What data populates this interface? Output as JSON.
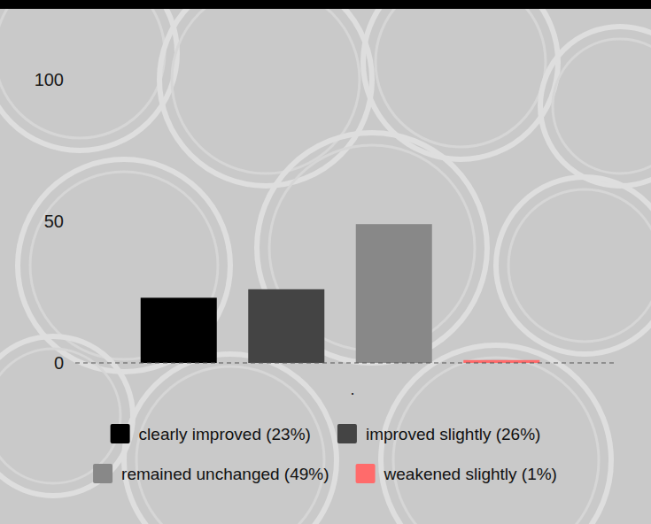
{
  "chart_data": {
    "type": "bar",
    "categories": [
      "."
    ],
    "series": [
      {
        "name": "clearly improved (23%)",
        "color": "#000000",
        "values": [
          23
        ]
      },
      {
        "name": "improved slightly (26%)",
        "color": "#444444",
        "values": [
          26
        ]
      },
      {
        "name": "remained unchanged (49%)",
        "color": "#888888",
        "values": [
          49
        ]
      },
      {
        "name": "weakened slightly (1%)",
        "color": "#ff6b6b",
        "values": [
          1
        ]
      }
    ],
    "ylim": [
      0,
      100
    ],
    "yticks": [
      0,
      50,
      100
    ],
    "grid": false,
    "legend": "bottom"
  }
}
